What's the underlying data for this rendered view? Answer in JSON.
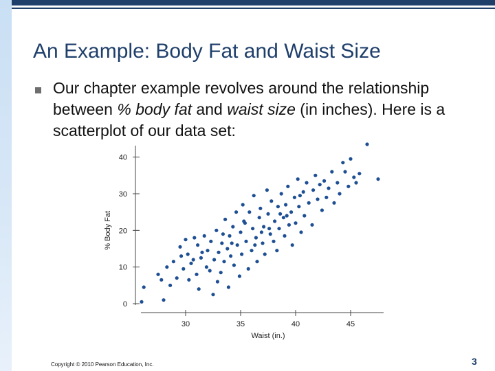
{
  "slide": {
    "title": "An Example: Body Fat and Waist Size",
    "body": {
      "part1": "Our chapter example revolves around the relationship between ",
      "em1": "% body fat",
      "part2": " and ",
      "em2": "waist size",
      "part3": " (in inches). Here is a scatterplot of our data set:"
    },
    "copyright": "Copyright © 2010 Pearson Education, Inc.",
    "page_number": "3"
  },
  "colors": {
    "accent": "#1f3f6b",
    "points": "#1e4f93"
  },
  "chart_data": {
    "type": "scatter",
    "xlabel": "Waist (in.)",
    "ylabel": "% Body Fat",
    "xlim": [
      26,
      48
    ],
    "ylim": [
      0,
      42
    ],
    "xticks": [
      30,
      35,
      40,
      45
    ],
    "yticks": [
      0,
      10,
      20,
      30,
      40
    ],
    "series": [
      {
        "points": [
          [
            26.0,
            0.5
          ],
          [
            26.2,
            4.5
          ],
          [
            28.0,
            1.0
          ],
          [
            27.5,
            8.0
          ],
          [
            27.8,
            6.5
          ],
          [
            28.3,
            10.0
          ],
          [
            28.6,
            5.0
          ],
          [
            28.9,
            11.5
          ],
          [
            29.2,
            7.0
          ],
          [
            29.5,
            15.5
          ],
          [
            29.6,
            13.0
          ],
          [
            29.8,
            9.5
          ],
          [
            30.0,
            17.5
          ],
          [
            30.2,
            13.5
          ],
          [
            30.3,
            6.5
          ],
          [
            30.5,
            11.0
          ],
          [
            30.8,
            18.0
          ],
          [
            31.0,
            8.0
          ],
          [
            31.1,
            16.0
          ],
          [
            31.2,
            4.0
          ],
          [
            31.4,
            12.5
          ],
          [
            31.7,
            18.5
          ],
          [
            31.9,
            10.0
          ],
          [
            32.0,
            14.5
          ],
          [
            32.2,
            9.0
          ],
          [
            32.3,
            17.0
          ],
          [
            32.5,
            2.5
          ],
          [
            32.6,
            12.0
          ],
          [
            32.8,
            20.0
          ],
          [
            32.9,
            6.0
          ],
          [
            33.0,
            14.0
          ],
          [
            33.2,
            8.5
          ],
          [
            33.3,
            16.5
          ],
          [
            33.5,
            11.5
          ],
          [
            33.6,
            23.0
          ],
          [
            33.8,
            15.0
          ],
          [
            33.9,
            4.5
          ],
          [
            34.0,
            18.5
          ],
          [
            34.1,
            13.0
          ],
          [
            34.3,
            21.0
          ],
          [
            34.4,
            10.5
          ],
          [
            34.6,
            25.0
          ],
          [
            34.7,
            16.0
          ],
          [
            34.9,
            7.5
          ],
          [
            35.0,
            19.5
          ],
          [
            35.1,
            13.5
          ],
          [
            35.2,
            27.0
          ],
          [
            35.4,
            22.0
          ],
          [
            35.5,
            17.0
          ],
          [
            35.7,
            9.5
          ],
          [
            35.8,
            25.0
          ],
          [
            36.0,
            14.5
          ],
          [
            36.1,
            20.5
          ],
          [
            36.2,
            29.5
          ],
          [
            36.4,
            18.0
          ],
          [
            36.5,
            11.5
          ],
          [
            36.7,
            23.5
          ],
          [
            36.8,
            26.0
          ],
          [
            37.0,
            16.5
          ],
          [
            37.1,
            21.0
          ],
          [
            37.2,
            13.5
          ],
          [
            37.4,
            31.0
          ],
          [
            37.5,
            24.5
          ],
          [
            37.7,
            19.0
          ],
          [
            37.8,
            28.0
          ],
          [
            38.0,
            17.0
          ],
          [
            38.1,
            22.5
          ],
          [
            38.3,
            14.5
          ],
          [
            38.4,
            26.5
          ],
          [
            38.5,
            20.5
          ],
          [
            38.7,
            30.0
          ],
          [
            38.9,
            23.5
          ],
          [
            39.0,
            18.5
          ],
          [
            39.1,
            27.0
          ],
          [
            39.3,
            32.0
          ],
          [
            39.4,
            21.5
          ],
          [
            39.6,
            25.0
          ],
          [
            39.7,
            16.0
          ],
          [
            39.9,
            29.0
          ],
          [
            40.0,
            22.0
          ],
          [
            40.2,
            34.0
          ],
          [
            40.3,
            26.5
          ],
          [
            40.5,
            19.5
          ],
          [
            40.7,
            30.5
          ],
          [
            40.8,
            24.0
          ],
          [
            41.0,
            33.0
          ],
          [
            41.2,
            27.5
          ],
          [
            41.5,
            21.5
          ],
          [
            41.6,
            31.0
          ],
          [
            41.8,
            35.0
          ],
          [
            42.0,
            28.5
          ],
          [
            42.2,
            32.5
          ],
          [
            42.4,
            25.5
          ],
          [
            42.6,
            33.5
          ],
          [
            42.8,
            29.0
          ],
          [
            43.0,
            31.5
          ],
          [
            43.3,
            36.0
          ],
          [
            43.5,
            27.5
          ],
          [
            43.8,
            33.0
          ],
          [
            44.0,
            30.0
          ],
          [
            44.3,
            38.5
          ],
          [
            44.5,
            36.0
          ],
          [
            44.8,
            32.0
          ],
          [
            45.0,
            39.5
          ],
          [
            45.3,
            34.5
          ],
          [
            45.5,
            33.0
          ],
          [
            45.8,
            35.5
          ],
          [
            46.5,
            43.5
          ],
          [
            47.5,
            34.0
          ],
          [
            33.4,
            19.0
          ],
          [
            34.2,
            16.5
          ],
          [
            36.3,
            16.0
          ],
          [
            37.6,
            20.5
          ],
          [
            39.2,
            24.0
          ],
          [
            40.4,
            29.5
          ],
          [
            31.5,
            14.0
          ],
          [
            30.7,
            12.0
          ],
          [
            35.3,
            22.5
          ],
          [
            36.9,
            19.5
          ],
          [
            38.6,
            24.5
          ]
        ]
      }
    ]
  }
}
